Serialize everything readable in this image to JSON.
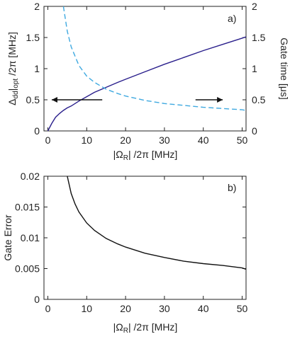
{
  "chart_data": [
    {
      "type": "line",
      "panel_label": "a)",
      "x": [
        0,
        1,
        2,
        3,
        4,
        5,
        6,
        8,
        10,
        12,
        15,
        18,
        20,
        25,
        30,
        35,
        40,
        45,
        50,
        51
      ],
      "xlim": [
        -1,
        51
      ],
      "xticks": [
        "0",
        "10",
        "20",
        "30",
        "40",
        "50"
      ],
      "xlabel_parts": [
        "|Ω",
        "R",
        "| /2π [MHz]"
      ],
      "ylim_left": [
        0,
        2
      ],
      "yticks_left": [
        "0",
        "0.5",
        "1",
        "1.5",
        "2"
      ],
      "ylabel_left_parts": [
        "Δ",
        "dd",
        "|",
        "opt",
        " /2π   [MHz]"
      ],
      "ylim_right": [
        0,
        2
      ],
      "yticks_right": [
        "0",
        "0.5",
        "1",
        "1.5",
        "2"
      ],
      "ylabel_right": "Gate time  [μs]",
      "series": [
        {
          "axis": "left",
          "style": "solid",
          "color": "#2a1f8c",
          "values": [
            0.0,
            0.12,
            0.22,
            0.28,
            0.33,
            0.37,
            0.4,
            0.48,
            0.55,
            0.62,
            0.7,
            0.78,
            0.83,
            0.95,
            1.07,
            1.18,
            1.29,
            1.39,
            1.49,
            1.51
          ]
        },
        {
          "axis": "right",
          "style": "dashed",
          "color": "#3fa9e0",
          "values": [
            null,
            null,
            null,
            null,
            2.0,
            1.6,
            1.35,
            1.05,
            0.88,
            0.78,
            0.67,
            0.6,
            0.56,
            0.49,
            0.44,
            0.41,
            0.38,
            0.36,
            0.34,
            0.33
          ]
        }
      ],
      "arrows": [
        {
          "direction": "left",
          "x_from": 14,
          "x_to": 1,
          "y": 0.5
        },
        {
          "direction": "right",
          "x_from": 38,
          "x_to": 45,
          "y": 0.5
        }
      ]
    },
    {
      "type": "line",
      "panel_label": "b)",
      "x": [
        5,
        6,
        7,
        8,
        10,
        12,
        15,
        18,
        20,
        25,
        30,
        35,
        40,
        45,
        50,
        51
      ],
      "xlim": [
        -1,
        51
      ],
      "xticks": [
        "0",
        "10",
        "20",
        "30",
        "40",
        "50"
      ],
      "xlabel_parts": [
        "|Ω",
        "R",
        "| /2π [MHz]"
      ],
      "ylim": [
        0,
        0.02
      ],
      "yticks": [
        "0",
        "0.005",
        "0.01",
        "0.015",
        "0.02"
      ],
      "ylabel": "Gate Error",
      "series": [
        {
          "style": "solid",
          "color": "#111111",
          "values": [
            0.02,
            0.0172,
            0.0155,
            0.0142,
            0.0124,
            0.0112,
            0.0099,
            0.009,
            0.0085,
            0.0075,
            0.0068,
            0.0062,
            0.0058,
            0.0055,
            0.0051,
            0.0049
          ]
        }
      ]
    }
  ]
}
